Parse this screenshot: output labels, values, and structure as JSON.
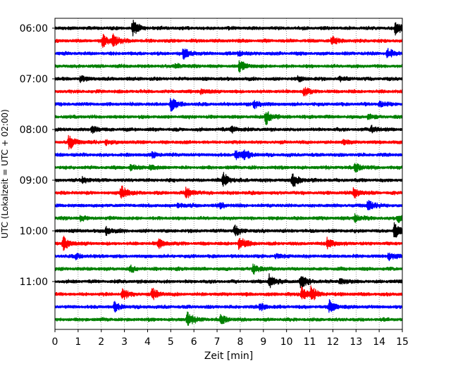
{
  "chart_data": {
    "type": "line",
    "title": "",
    "xlabel": "Zeit  [min]",
    "ylabel": "UTC (Lokalzeit = UTC + 02:00)",
    "xlim": [
      0,
      15
    ],
    "x_ticks": [
      0,
      1,
      2,
      3,
      4,
      5,
      6,
      7,
      8,
      9,
      10,
      11,
      12,
      13,
      14,
      15
    ],
    "y_tick_labels": [
      "06:00",
      "07:00",
      "08:00",
      "09:00",
      "10:00",
      "11:00"
    ],
    "y_tick_row_index": [
      0,
      4,
      8,
      12,
      16,
      20
    ],
    "row_interval_min": 15,
    "grid": "vertical dotted",
    "colors": [
      "#000000",
      "#ff0000",
      "#0000ff",
      "#008000"
    ],
    "rows": [
      {
        "color": "#000000",
        "events": [
          [
            3.35,
            1.0
          ],
          [
            14.7,
            0.9
          ]
        ]
      },
      {
        "color": "#ff0000",
        "events": [
          [
            2.05,
            0.8
          ],
          [
            2.5,
            0.7
          ],
          [
            11.95,
            0.5
          ]
        ]
      },
      {
        "color": "#0000ff",
        "events": [
          [
            5.55,
            0.9
          ],
          [
            14.35,
            0.6
          ],
          [
            7.9,
            0.3
          ]
        ]
      },
      {
        "color": "#008000",
        "events": [
          [
            7.95,
            0.7
          ],
          [
            5.2,
            0.35
          ]
        ]
      },
      {
        "color": "#000000",
        "events": [
          [
            1.1,
            0.35
          ],
          [
            10.5,
            0.3
          ],
          [
            12.3,
            0.25
          ]
        ]
      },
      {
        "color": "#ff0000",
        "events": [
          [
            10.75,
            0.5
          ],
          [
            6.3,
            0.3
          ]
        ]
      },
      {
        "color": "#0000ff",
        "events": [
          [
            5.0,
            0.95
          ],
          [
            8.6,
            0.55
          ],
          [
            14.0,
            0.3
          ]
        ]
      },
      {
        "color": "#008000",
        "events": [
          [
            9.1,
            1.0
          ],
          [
            13.5,
            0.3
          ]
        ]
      },
      {
        "color": "#000000",
        "events": [
          [
            1.6,
            0.5
          ],
          [
            7.6,
            0.45
          ],
          [
            13.65,
            0.55
          ]
        ]
      },
      {
        "color": "#ff0000",
        "events": [
          [
            0.6,
            1.0
          ],
          [
            2.2,
            0.3
          ],
          [
            12.4,
            0.3
          ]
        ]
      },
      {
        "color": "#0000ff",
        "events": [
          [
            7.8,
            0.6
          ],
          [
            8.15,
            0.6
          ],
          [
            4.2,
            0.3
          ]
        ]
      },
      {
        "color": "#008000",
        "events": [
          [
            12.95,
            0.6
          ],
          [
            3.25,
            0.3
          ],
          [
            4.1,
            0.3
          ]
        ]
      },
      {
        "color": "#000000",
        "events": [
          [
            7.25,
            1.0
          ],
          [
            10.25,
            1.0
          ],
          [
            1.2,
            0.4
          ]
        ]
      },
      {
        "color": "#ff0000",
        "events": [
          [
            2.85,
            1.0
          ],
          [
            5.65,
            0.75
          ],
          [
            12.9,
            0.75
          ]
        ]
      },
      {
        "color": "#0000ff",
        "events": [
          [
            13.5,
            0.75
          ],
          [
            7.15,
            0.35
          ],
          [
            5.3,
            0.25
          ]
        ]
      },
      {
        "color": "#008000",
        "events": [
          [
            12.95,
            0.45
          ],
          [
            14.8,
            0.5
          ],
          [
            1.1,
            0.3
          ]
        ]
      },
      {
        "color": "#000000",
        "events": [
          [
            2.2,
            0.5
          ],
          [
            7.75,
            0.65
          ],
          [
            14.65,
            1.0
          ]
        ]
      },
      {
        "color": "#ff0000",
        "events": [
          [
            0.35,
            0.9
          ],
          [
            4.45,
            0.6
          ],
          [
            7.95,
            1.0
          ],
          [
            11.75,
            0.75
          ]
        ]
      },
      {
        "color": "#0000ff",
        "events": [
          [
            0.9,
            0.35
          ],
          [
            14.4,
            0.6
          ],
          [
            9.5,
            0.25
          ]
        ]
      },
      {
        "color": "#008000",
        "events": [
          [
            8.55,
            0.7
          ],
          [
            3.25,
            0.35
          ]
        ]
      },
      {
        "color": "#000000",
        "events": [
          [
            9.25,
            0.95
          ],
          [
            10.6,
            0.9
          ],
          [
            12.3,
            0.3
          ]
        ]
      },
      {
        "color": "#ff0000",
        "events": [
          [
            2.9,
            0.8
          ],
          [
            4.2,
            0.8
          ],
          [
            10.65,
            0.95
          ],
          [
            11.05,
            0.85
          ]
        ]
      },
      {
        "color": "#0000ff",
        "events": [
          [
            2.55,
            0.6
          ],
          [
            11.85,
            0.75
          ],
          [
            8.85,
            0.45
          ]
        ]
      },
      {
        "color": "#008000",
        "events": [
          [
            5.7,
            1.0
          ],
          [
            7.15,
            0.6
          ]
        ]
      }
    ]
  }
}
